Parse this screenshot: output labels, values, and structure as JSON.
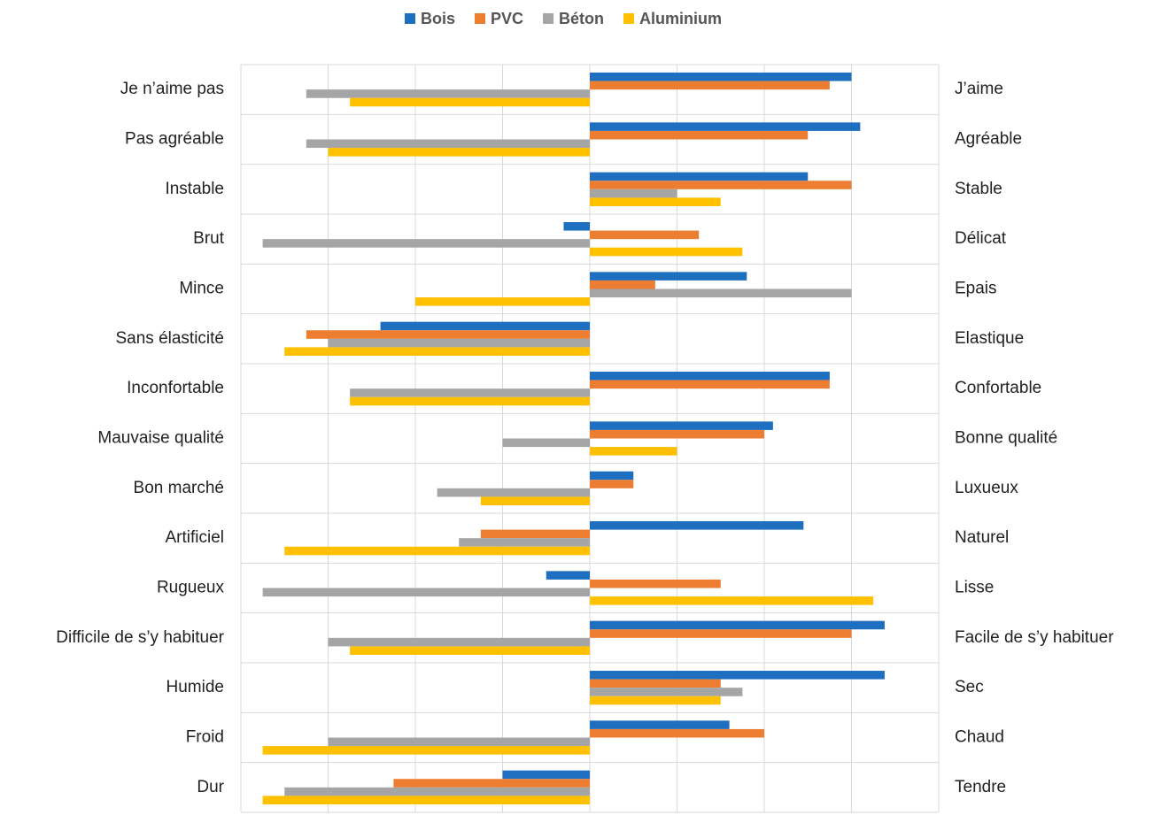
{
  "chart_data": {
    "type": "bar",
    "orientation": "horizontal",
    "categories": [
      "Je n’aime pas",
      "Pas agréable",
      "Instable",
      "Brut",
      "Mince",
      "Sans élasticité",
      "Inconfortable",
      "Mauvaise qualité",
      "Bon marché",
      "Artificiel",
      "Rugueux",
      "Difficile de s’y habituer",
      "Humide",
      "Froid",
      "Dur"
    ],
    "right_labels": [
      "J’aime",
      "Agréable",
      "Stable",
      "Délicat",
      "Epais",
      "Elastique",
      "Confortable",
      "Bonne qualité",
      "Luxueux",
      "Naturel",
      "Lisse",
      "Facile de s’y habituer",
      "Sec",
      "Chaud",
      "Tendre"
    ],
    "series": [
      {
        "name": "Bois",
        "color": "#1f6fc1",
        "values": [
          3.0,
          3.1,
          2.5,
          -0.3,
          1.8,
          -2.4,
          2.75,
          2.1,
          0.5,
          2.45,
          -0.5,
          3.38,
          3.38,
          1.6,
          -1.0
        ]
      },
      {
        "name": "PVC",
        "color": "#ed7d31",
        "values": [
          2.75,
          2.5,
          3.0,
          1.25,
          0.75,
          -3.25,
          2.75,
          2.0,
          0.5,
          -1.25,
          1.5,
          3.0,
          1.5,
          2.0,
          -2.25
        ]
      },
      {
        "name": "Béton",
        "color": "#a5a5a5",
        "values": [
          -3.25,
          -3.25,
          1.0,
          -3.75,
          3.0,
          -3.0,
          -2.75,
          -1.0,
          -1.75,
          -1.5,
          -3.75,
          -3.0,
          1.75,
          -3.0,
          -3.5
        ]
      },
      {
        "name": "Aluminium",
        "color": "#ffc000",
        "values": [
          -2.75,
          -3.0,
          1.5,
          1.75,
          -2.0,
          -3.5,
          -2.75,
          1.0,
          -1.25,
          -3.5,
          3.25,
          -2.75,
          1.5,
          -3.75,
          -3.75
        ]
      }
    ],
    "xlim": [
      -4,
      4
    ],
    "xticks": [
      -4,
      -3,
      -2,
      -1,
      0,
      1,
      2,
      3,
      4
    ],
    "grid": true,
    "legend": "top"
  }
}
